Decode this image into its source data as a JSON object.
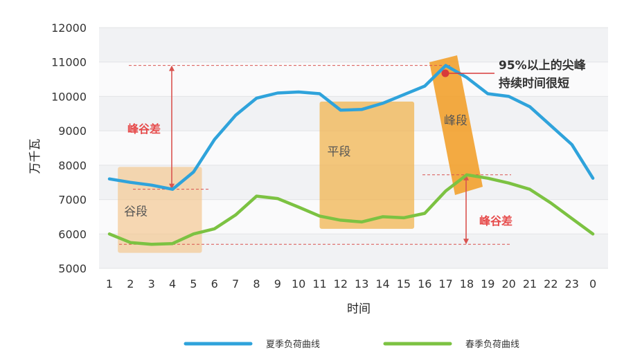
{
  "chart_data": {
    "type": "line",
    "categories": [
      "1",
      "2",
      "3",
      "4",
      "5",
      "6",
      "7",
      "8",
      "9",
      "10",
      "11",
      "12",
      "13",
      "14",
      "15",
      "16",
      "17",
      "18",
      "19",
      "20",
      "21",
      "22",
      "23",
      "0"
    ],
    "series": [
      {
        "name": "夏季负荷曲线",
        "color": "#2fa3db",
        "values": [
          7600,
          7500,
          7420,
          7300,
          7800,
          8750,
          9450,
          9950,
          10100,
          10130,
          10080,
          9600,
          9620,
          9800,
          10050,
          10300,
          10900,
          10550,
          10080,
          10000,
          9700,
          9150,
          8600,
          7620
        ]
      },
      {
        "name": "春季负荷曲线",
        "color": "#7cc242",
        "values": [
          6000,
          5750,
          5700,
          5720,
          6000,
          6150,
          6550,
          7100,
          7030,
          6780,
          6520,
          6400,
          6350,
          6500,
          6470,
          6600,
          7250,
          7720,
          7620,
          7480,
          7300,
          6900,
          6450,
          6000
        ]
      }
    ],
    "xlabel": "时间",
    "ylabel": "万千瓦",
    "ylim": [
      5000,
      12000
    ],
    "yticks": [
      5000,
      6000,
      7000,
      8000,
      9000,
      10000,
      11000,
      12000
    ],
    "grid": true,
    "legend_position": "bottom",
    "regions": [
      {
        "label": "谷段",
        "x_from": 1.4,
        "x_to": 5.4,
        "y_from": 5450,
        "y_to": 7950,
        "color": "#f5c48a"
      },
      {
        "label": "平段",
        "x_from": 11,
        "x_to": 15.5,
        "y_from": 6150,
        "y_to": 9850,
        "color": "#f0b450"
      },
      {
        "label": "峰段",
        "color": "#f2a12e"
      }
    ],
    "annotations": {
      "peak_valley_summer": "峰谷差",
      "peak_valley_spring": "峰谷差",
      "peak_note_line1": "95%以上的尖峰",
      "peak_note_line2": "持续时间很短"
    }
  }
}
